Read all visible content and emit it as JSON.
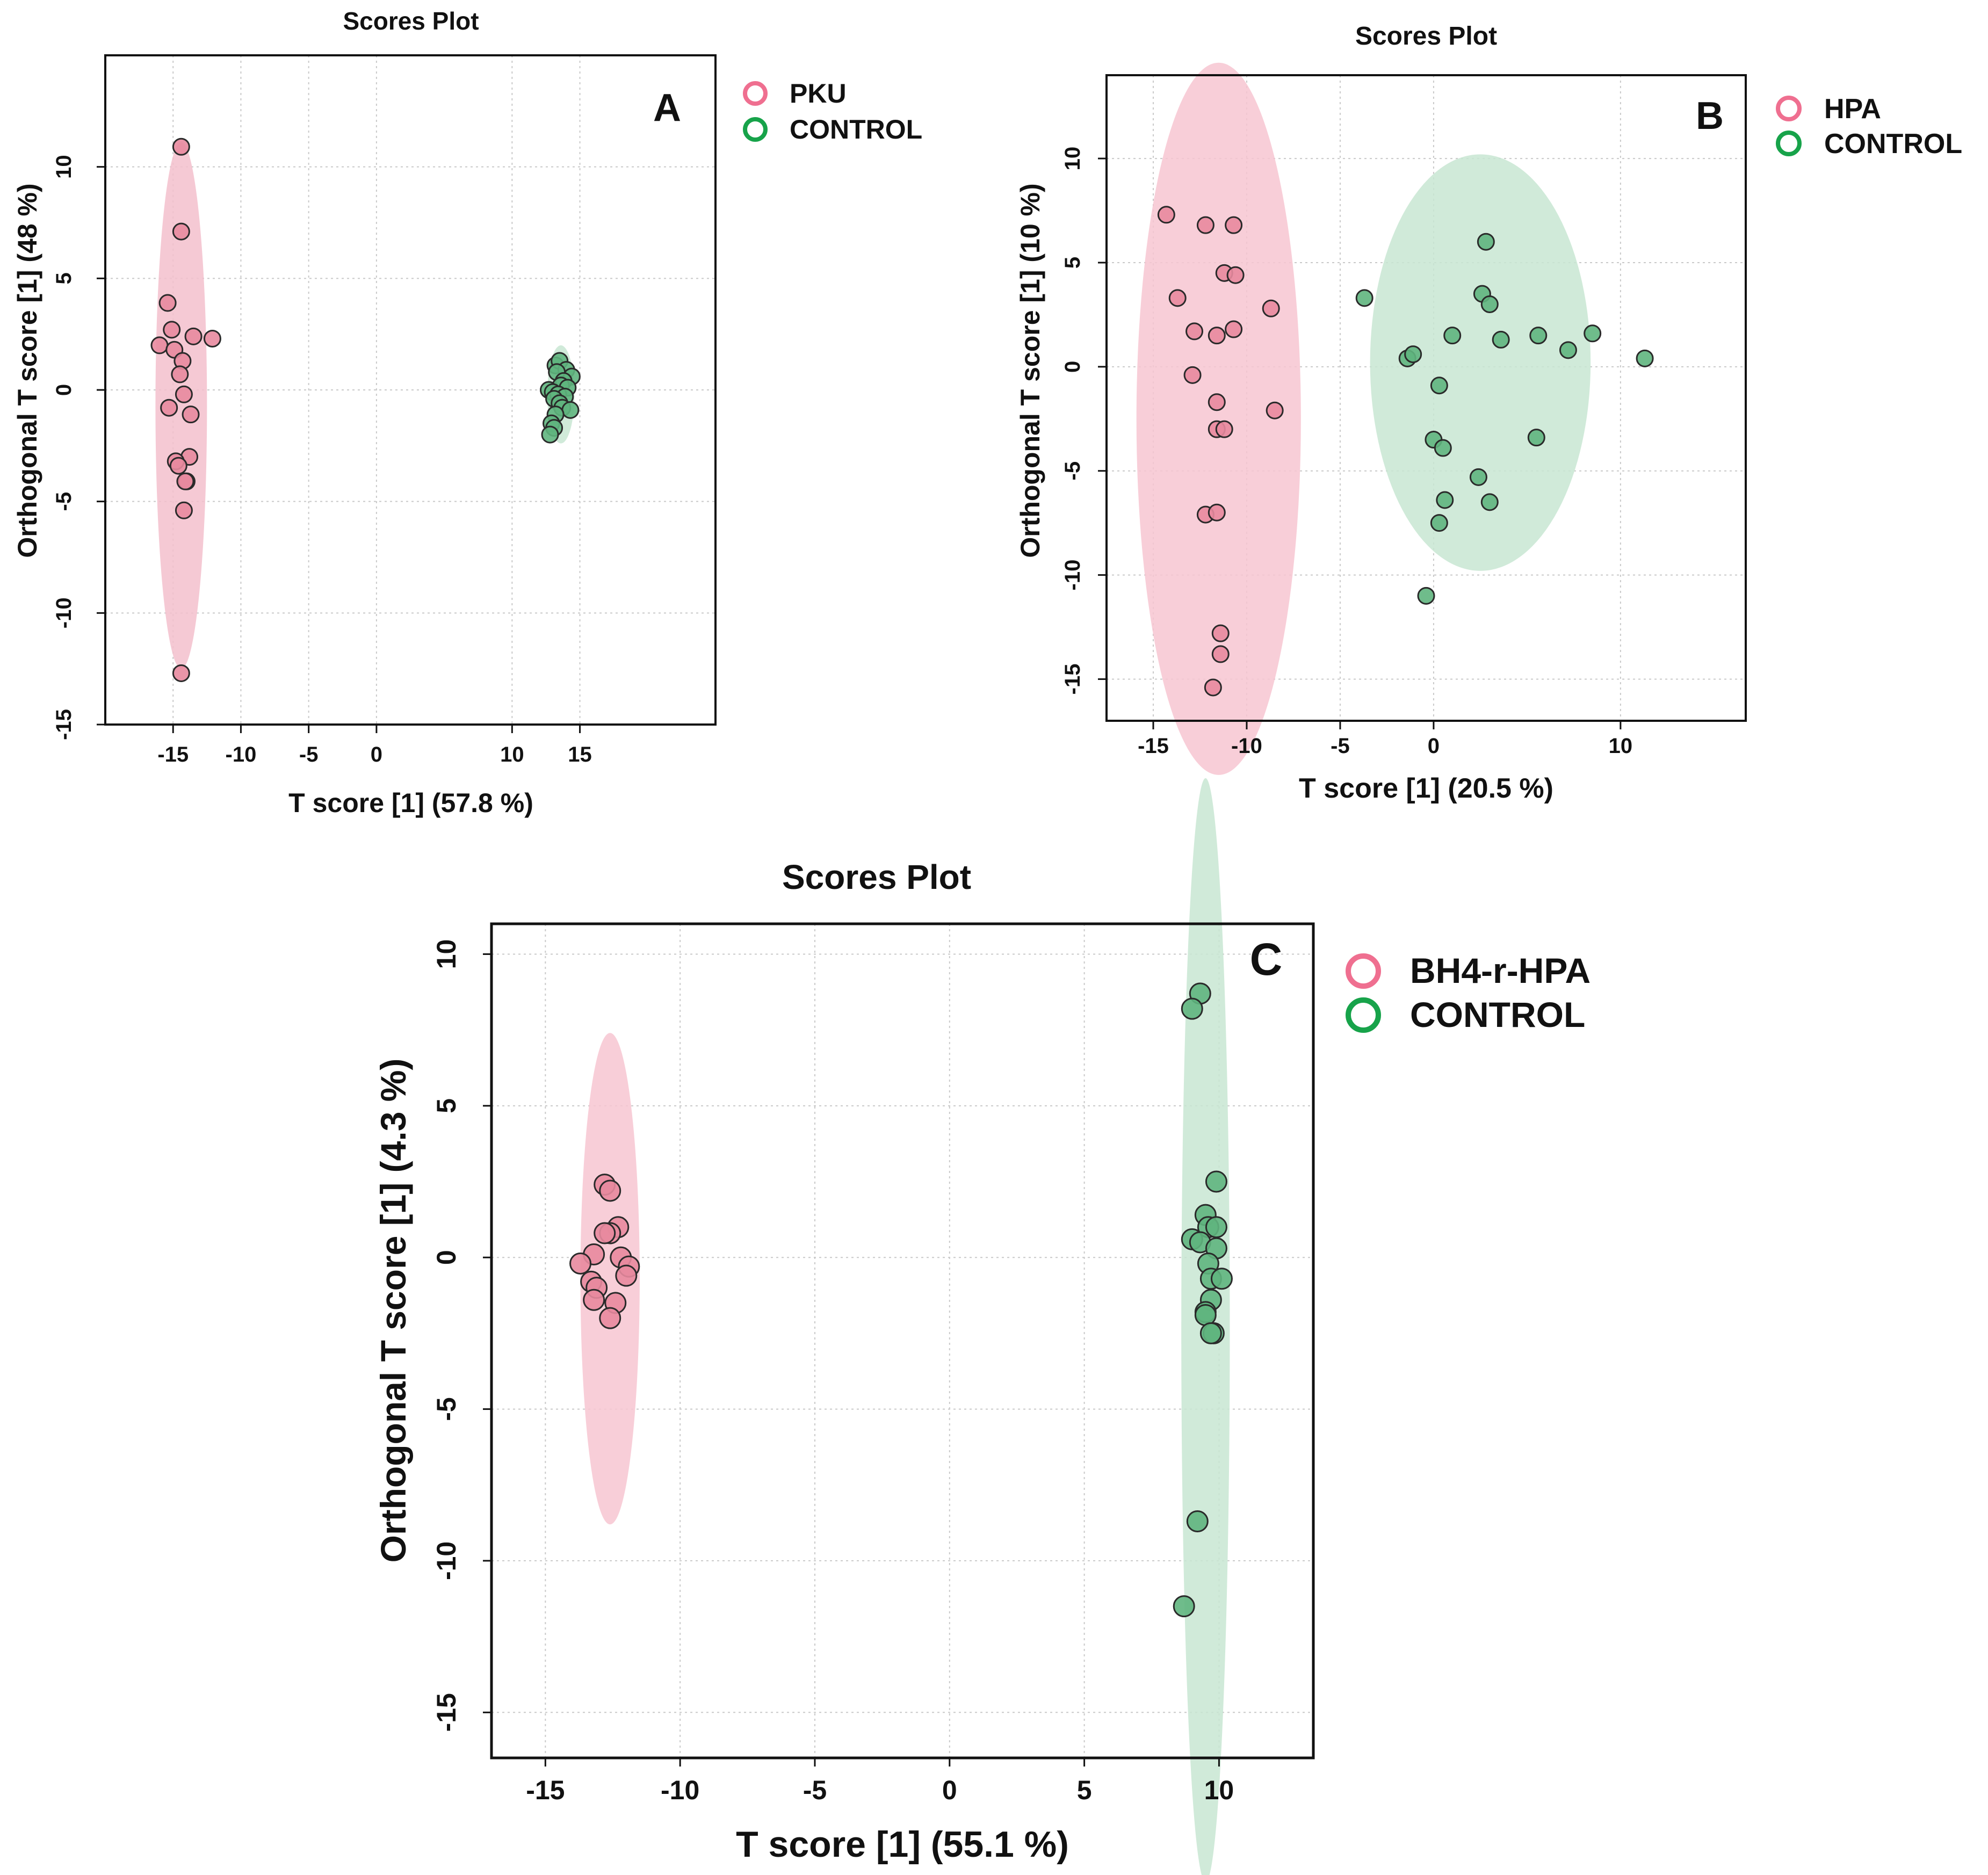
{
  "chart_data": [
    {
      "id": "A",
      "type": "scatter",
      "title": "Scores Plot",
      "panel_label": "A",
      "xlabel": "T score [1] (57.8 %)",
      "ylabel": "Orthogonal T score [1] (48 %)",
      "xlim": [
        -20,
        25
      ],
      "ylim": [
        -15,
        15
      ],
      "xticks": [
        -15,
        -10,
        -5,
        0,
        10,
        15
      ],
      "yticks": [
        10,
        5,
        0,
        -5,
        -10,
        -15
      ],
      "grid": true,
      "legend": {
        "position": "right-top",
        "entries": [
          "PKU",
          "CONTROL"
        ]
      },
      "series": [
        {
          "name": "PKU",
          "color": "#f3bfcc",
          "marker_fill": "#e8899e",
          "legend_color": "#ef6f90",
          "ellipse": {
            "cx": -14.4,
            "cy": -0.7,
            "rx": 1.9,
            "ry": 11.8
          },
          "points": [
            [
              -14.4,
              10.9
            ],
            [
              -14.4,
              7.1
            ],
            [
              -15.4,
              3.9
            ],
            [
              -13.5,
              2.4
            ],
            [
              -12.1,
              2.3
            ],
            [
              -16.0,
              2.0
            ],
            [
              -15.1,
              2.7
            ],
            [
              -14.9,
              1.8
            ],
            [
              -14.3,
              1.3
            ],
            [
              -14.5,
              0.7
            ],
            [
              -14.2,
              -0.2
            ],
            [
              -15.3,
              -0.8
            ],
            [
              -13.7,
              -1.1
            ],
            [
              -13.8,
              -3.0
            ],
            [
              -14.8,
              -3.2
            ],
            [
              -14.6,
              -3.4
            ],
            [
              -14.0,
              -4.1
            ],
            [
              -14.1,
              -4.1
            ],
            [
              -14.2,
              -5.4
            ],
            [
              -14.4,
              -12.7
            ]
          ]
        },
        {
          "name": "CONTROL",
          "color": "#c8e6d2",
          "marker_fill": "#5fb57e",
          "legend_color": "#17a34a",
          "ellipse": {
            "cx": 13.6,
            "cy": -0.2,
            "rx": 1.0,
            "ry": 2.2
          },
          "points": [
            [
              13.2,
              1.1
            ],
            [
              13.5,
              1.3
            ],
            [
              14.0,
              0.9
            ],
            [
              13.3,
              0.8
            ],
            [
              14.4,
              0.6
            ],
            [
              13.8,
              0.4
            ],
            [
              13.6,
              0.2
            ],
            [
              14.1,
              0.1
            ],
            [
              12.7,
              0.0
            ],
            [
              13.0,
              -0.1
            ],
            [
              13.4,
              -0.2
            ],
            [
              13.9,
              -0.3
            ],
            [
              13.1,
              -0.4
            ],
            [
              13.5,
              -0.6
            ],
            [
              13.7,
              -0.8
            ],
            [
              14.3,
              -0.9
            ],
            [
              13.2,
              -1.1
            ],
            [
              12.9,
              -1.5
            ],
            [
              13.1,
              -1.7
            ],
            [
              12.8,
              -2.0
            ]
          ]
        }
      ]
    },
    {
      "id": "B",
      "type": "scatter",
      "title": "Scores Plot",
      "panel_label": "B",
      "xlabel": "T score [1] (20.5 %)",
      "ylabel": "Orthogonal T score [1] (10 %)",
      "xlim": [
        -17.5,
        16.7
      ],
      "ylim": [
        -17,
        14
      ],
      "xticks": [
        -15,
        -10,
        -5,
        0,
        10
      ],
      "yticks": [
        10,
        5,
        0,
        -5,
        -10,
        -15
      ],
      "grid": true,
      "legend": {
        "position": "right-top",
        "entries": [
          "HPA",
          "CONTROL"
        ]
      },
      "series": [
        {
          "name": "HPA",
          "color": "#f7c6d1",
          "marker_fill": "#e8899e",
          "legend_color": "#ef6f90",
          "ellipse": {
            "cx": -11.5,
            "cy": -2.5,
            "rx": 4.4,
            "ry": 17.1
          },
          "points": [
            [
              -14.3,
              7.3
            ],
            [
              -12.2,
              6.8
            ],
            [
              -10.7,
              6.8
            ],
            [
              -11.2,
              4.5
            ],
            [
              -10.6,
              4.4
            ],
            [
              -13.7,
              3.3
            ],
            [
              -8.7,
              2.8
            ],
            [
              -12.8,
              1.7
            ],
            [
              -11.6,
              1.5
            ],
            [
              -10.7,
              1.8
            ],
            [
              -12.9,
              -0.4
            ],
            [
              -11.6,
              -1.7
            ],
            [
              -11.6,
              -3.0
            ],
            [
              -8.5,
              -2.1
            ],
            [
              -11.2,
              -3.0
            ],
            [
              -12.2,
              -7.1
            ],
            [
              -11.6,
              -7.0
            ],
            [
              -11.4,
              -12.8
            ],
            [
              -11.4,
              -13.8
            ],
            [
              -11.8,
              -15.4
            ]
          ]
        },
        {
          "name": "CONTROL",
          "color": "#c8e6d2",
          "marker_fill": "#5fb57e",
          "legend_color": "#17a34a",
          "ellipse": {
            "cx": 2.5,
            "cy": 0.2,
            "rx": 5.9,
            "ry": 10.0
          },
          "points": [
            [
              2.8,
              6.0
            ],
            [
              -3.7,
              3.3
            ],
            [
              2.6,
              3.5
            ],
            [
              3.0,
              3.0
            ],
            [
              1.0,
              1.5
            ],
            [
              3.6,
              1.3
            ],
            [
              5.6,
              1.5
            ],
            [
              8.5,
              1.6
            ],
            [
              7.2,
              0.8
            ],
            [
              11.3,
              0.4
            ],
            [
              -1.4,
              0.4
            ],
            [
              -1.1,
              0.6
            ],
            [
              0.3,
              -0.9
            ],
            [
              0.0,
              -3.5
            ],
            [
              0.5,
              -3.9
            ],
            [
              5.5,
              -3.4
            ],
            [
              2.4,
              -5.3
            ],
            [
              0.6,
              -6.4
            ],
            [
              3.0,
              -6.5
            ],
            [
              0.3,
              -7.5
            ],
            [
              -0.4,
              -11.0
            ]
          ]
        }
      ]
    },
    {
      "id": "C",
      "type": "scatter",
      "title": "Scores Plot",
      "panel_label": "C",
      "xlabel": "T score [1] (55.1 %)",
      "ylabel": "Orthogonal T score [1] (4.3 %)",
      "xlim": [
        -17,
        13.5
      ],
      "ylim": [
        -16.5,
        11
      ],
      "xticks": [
        -15,
        -10,
        -5,
        0,
        5,
        10
      ],
      "yticks": [
        10,
        5,
        0,
        -5,
        -10,
        -15
      ],
      "grid": true,
      "legend": {
        "position": "right-top",
        "entries": [
          "BH4-r-HPA",
          "CONTROL"
        ]
      },
      "series": [
        {
          "name": "BH4-r-HPA",
          "color": "#f7c6d1",
          "marker_fill": "#e8899e",
          "legend_color": "#ef6f90",
          "ellipse": {
            "cx": -12.6,
            "cy": -0.7,
            "rx": 1.1,
            "ry": 8.1
          },
          "points": [
            [
              -12.8,
              2.4
            ],
            [
              -12.6,
              2.2
            ],
            [
              -12.3,
              1.0
            ],
            [
              -12.6,
              0.8
            ],
            [
              -12.8,
              0.8
            ],
            [
              -13.2,
              0.1
            ],
            [
              -13.7,
              -0.2
            ],
            [
              -12.2,
              0.0
            ],
            [
              -11.9,
              -0.3
            ],
            [
              -12.0,
              -0.6
            ],
            [
              -13.3,
              -0.8
            ],
            [
              -13.1,
              -1.0
            ],
            [
              -12.4,
              -1.5
            ],
            [
              -13.2,
              -1.4
            ],
            [
              -12.6,
              -2.0
            ]
          ]
        },
        {
          "name": "CONTROL",
          "color": "#c8e6d2",
          "marker_fill": "#5fb57e",
          "legend_color": "#17a34a",
          "ellipse": {
            "cx": 9.5,
            "cy": -2.4,
            "rx": 0.9,
            "ry": 18.2
          },
          "points": [
            [
              9.3,
              8.7
            ],
            [
              9.0,
              8.2
            ],
            [
              9.9,
              2.5
            ],
            [
              9.5,
              1.4
            ],
            [
              9.6,
              1.0
            ],
            [
              9.9,
              1.0
            ],
            [
              9.0,
              0.6
            ],
            [
              9.3,
              0.5
            ],
            [
              9.9,
              0.3
            ],
            [
              9.6,
              -0.2
            ],
            [
              9.7,
              -0.7
            ],
            [
              10.1,
              -0.7
            ],
            [
              9.7,
              -1.4
            ],
            [
              9.5,
              -1.8
            ],
            [
              9.5,
              -1.9
            ],
            [
              9.8,
              -2.5
            ],
            [
              9.7,
              -2.5
            ],
            [
              9.2,
              -8.7
            ],
            [
              8.7,
              -11.5
            ]
          ]
        }
      ]
    }
  ]
}
